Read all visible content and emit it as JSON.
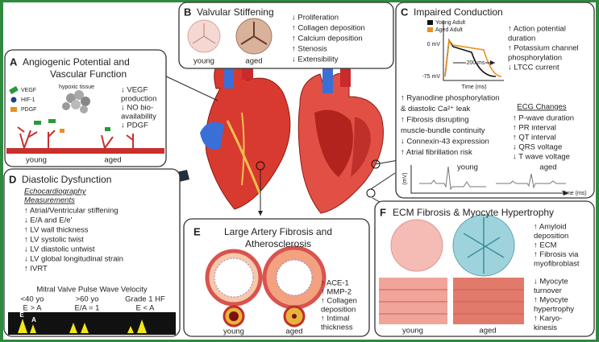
{
  "panels": {
    "a": {
      "letter": "A",
      "title": [
        "Angiogenic Potential and",
        "Vascular Function"
      ],
      "hypoxic_tissue": "hypoxic tissue",
      "legend": [
        "VEGF",
        "HIF-1",
        "PDGF"
      ],
      "effects": [
        "↓ VEGF",
        "production",
        "↓ NO bio-",
        "availability",
        "↓ PDGF"
      ],
      "young": "young",
      "aged": "aged"
    },
    "b": {
      "letter": "B",
      "title": "Valvular Stiffening",
      "young": "young",
      "aged": "aged",
      "effects": [
        "↓ Proliferation",
        "↑ Collagen deposition",
        "↑ Calcium deposition",
        "↑ Stenosis",
        "↓ Extensibility"
      ]
    },
    "c": {
      "letter": "C",
      "title": "Impaired Conduction",
      "legend": [
        "Young Adult",
        "Aged Adult"
      ],
      "y_labels": [
        "0 mV",
        "-75 mV"
      ],
      "duration": "200 ms",
      "x_label": "Time (ms)",
      "effects": [
        "↑ Action potential",
        "duration",
        "↑ Potassium channel",
        "phosphorylation",
        "↓ LTCC current"
      ],
      "mechanisms": [
        "↑  Ryanodine phosphorylation",
        "& diastolic Ca²⁺ leak",
        "↑  Fibrosis disrupting",
        "muscle-bundle continuity",
        "↓  Connexin-43 expression",
        "↑  Atrial fibrillation risk"
      ],
      "ecg_title": "ECG Changes",
      "ecg_changes": [
        "↑ P-wave duration",
        "↑ PR interval",
        "↑ QT interval",
        "↓ QRS voltage",
        "↓ T wave voltage"
      ],
      "ecg_y_label": "(mV)",
      "ecg_young": "young",
      "ecg_aged": "aged",
      "ecg_x_label": "Time (ms)"
    },
    "d": {
      "letter": "D",
      "title": "Diastolic Dysfunction",
      "measurements_title": [
        "Echocardiography",
        "Measurements"
      ],
      "measurements": [
        "↑ Atrial/Ventricular stiffening",
        "↓ E/A and E/e'",
        "↑ LV wall thickness",
        "↑ LV systolic twist",
        "↓ LV diastolic untwist",
        "↓ LV global longitudinal strain",
        "↑ IVRT"
      ],
      "velocity_title": "Mitral Valve Pulse Wave Velocity",
      "columns": [
        {
          "age": "<40 yo",
          "ratio": "E > A"
        },
        {
          "age": ">60 yo",
          "ratio": "E/A = 1"
        },
        {
          "age": "Grade 1 HF",
          "ratio": "E < A"
        }
      ],
      "peak_labels": [
        "E",
        "A"
      ]
    },
    "e": {
      "letter": "E",
      "title": [
        "Large Artery Fibrosis and",
        "Atherosclerosis"
      ],
      "effects": [
        "↑ ACE-1",
        "↑ MMP-2",
        "↑ Collagen",
        "deposition",
        "↑ Intimal",
        "thickness"
      ],
      "young": "young",
      "aged": "aged"
    },
    "f": {
      "letter": "F",
      "title": "ECM Fibrosis & Myocyte Hypertrophy",
      "ecm_effects": [
        "↑ Amyloid",
        "deposition",
        "↑ ECM",
        "↑ Fibrosis via",
        "myofibroblast"
      ],
      "myocyte_effects": [
        "↓ Myocyte",
        "turnover",
        "↑ Myocyte",
        "hypertrophy",
        "↑ Karyo-",
        "kinesis"
      ],
      "young": "young",
      "aged": "aged"
    }
  }
}
